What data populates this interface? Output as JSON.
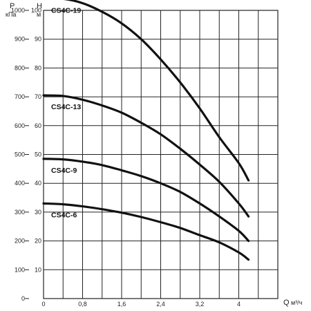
{
  "chart_data": {
    "type": "line",
    "xlabel": "Q",
    "xunit": "м³/ч",
    "ylabel_left": "P",
    "yunit_left": "кПа",
    "ylabel_right": "Н",
    "yunit_right": "м",
    "xlim": [
      0,
      4.8
    ],
    "x_ticks": [
      0,
      0.8,
      1.6,
      2.4,
      3.2,
      4
    ],
    "x_tick_labels": [
      "0",
      "0,8",
      "1,6",
      "2,4",
      "3,2",
      "4"
    ],
    "ylim_left": [
      0,
      1000
    ],
    "ylim_right": [
      0,
      100
    ],
    "y_ticks_left": [
      0,
      100,
      200,
      300,
      400,
      500,
      600,
      700,
      800,
      900,
      1000
    ],
    "y_tick_labels_left": [
      "0",
      "100",
      "200",
      "300",
      "400",
      "500",
      "600",
      "700",
      "800",
      "900",
      "1000"
    ],
    "y_ticks_right": [
      10,
      20,
      30,
      40,
      50,
      60,
      70,
      80,
      90,
      100
    ],
    "y_tick_labels_right": [
      "10",
      "20",
      "30",
      "40",
      "50",
      "60",
      "70",
      "80",
      "90",
      "100"
    ],
    "grid": true,
    "series": [
      {
        "name": "CS4C-19",
        "x": [
          0,
          0.4,
          0.8,
          1.2,
          1.6,
          2.0,
          2.4,
          2.8,
          3.2,
          3.6,
          4.0,
          4.2
        ],
        "y": [
          104,
          104,
          102.5,
          99.5,
          95.5,
          90,
          83,
          75,
          66,
          56,
          47,
          41
        ]
      },
      {
        "name": "CS4C-13",
        "x": [
          0,
          0.4,
          0.8,
          1.2,
          1.6,
          2.0,
          2.4,
          2.8,
          3.2,
          3.6,
          4.0,
          4.2
        ],
        "y": [
          70.5,
          70.3,
          69,
          67,
          64.5,
          61,
          57,
          52,
          46.5,
          40.5,
          33,
          28.5
        ]
      },
      {
        "name": "CS4C-9",
        "x": [
          0,
          0.4,
          0.8,
          1.2,
          1.6,
          2.0,
          2.4,
          2.8,
          3.2,
          3.6,
          4.0,
          4.2
        ],
        "y": [
          48.5,
          48.3,
          47.5,
          46.3,
          44.5,
          42.5,
          40,
          37,
          33,
          28.5,
          23.5,
          20
        ]
      },
      {
        "name": "CS4C-6",
        "x": [
          0,
          0.4,
          0.8,
          1.2,
          1.6,
          2.0,
          2.4,
          2.8,
          3.2,
          3.6,
          4.0,
          4.2
        ],
        "y": [
          33,
          32.7,
          32,
          31,
          29.8,
          28.3,
          26.5,
          24.5,
          22,
          19.5,
          16,
          13.5
        ]
      }
    ]
  }
}
